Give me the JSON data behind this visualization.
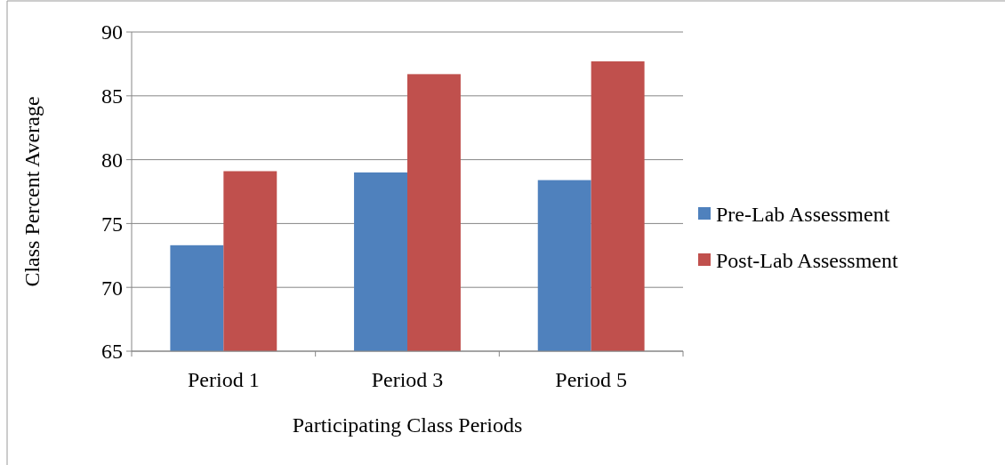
{
  "chart_data": {
    "type": "bar",
    "xlabel": "Participating Class Periods",
    "ylabel": "Class Percent Average",
    "categories": [
      "Period 1",
      "Period 3",
      "Period 5"
    ],
    "series": [
      {
        "name": "Pre-Lab Assessment",
        "color": "#4f81bd",
        "values": [
          73.3,
          79.0,
          78.4
        ]
      },
      {
        "name": "Post-Lab Assessment",
        "color": "#c0504d",
        "values": [
          79.1,
          86.7,
          87.7
        ]
      }
    ],
    "ylim": [
      65,
      90
    ],
    "yticks": [
      65,
      70,
      75,
      80,
      85,
      90
    ],
    "grid": "y",
    "legend": "right"
  }
}
